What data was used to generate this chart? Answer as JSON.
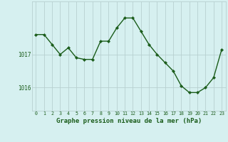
{
  "hours": [
    0,
    1,
    2,
    3,
    4,
    5,
    6,
    7,
    8,
    9,
    10,
    11,
    12,
    13,
    14,
    15,
    16,
    17,
    18,
    19,
    20,
    21,
    22,
    23
  ],
  "pressure": [
    1017.6,
    1017.6,
    1017.3,
    1017.0,
    1017.2,
    1016.9,
    1016.85,
    1016.85,
    1017.4,
    1017.4,
    1017.8,
    1018.1,
    1018.1,
    1017.7,
    1017.3,
    1017.0,
    1016.75,
    1016.5,
    1016.05,
    1015.85,
    1015.85,
    1016.0,
    1016.3,
    1017.15
  ],
  "line_color": "#1a5c1a",
  "marker": "D",
  "marker_size": 2.2,
  "line_width": 1.0,
  "background_color": "#d6f0f0",
  "grid_color": "#b8d0d0",
  "axis_label_color": "#1a5c1a",
  "tick_label_color": "#1a5c1a",
  "xlabel": "Graphe pression niveau de la mer (hPa)",
  "xlabel_fontsize": 6.5,
  "ylim": [
    1015.3,
    1018.6
  ],
  "xlim": [
    -0.5,
    23.5
  ]
}
